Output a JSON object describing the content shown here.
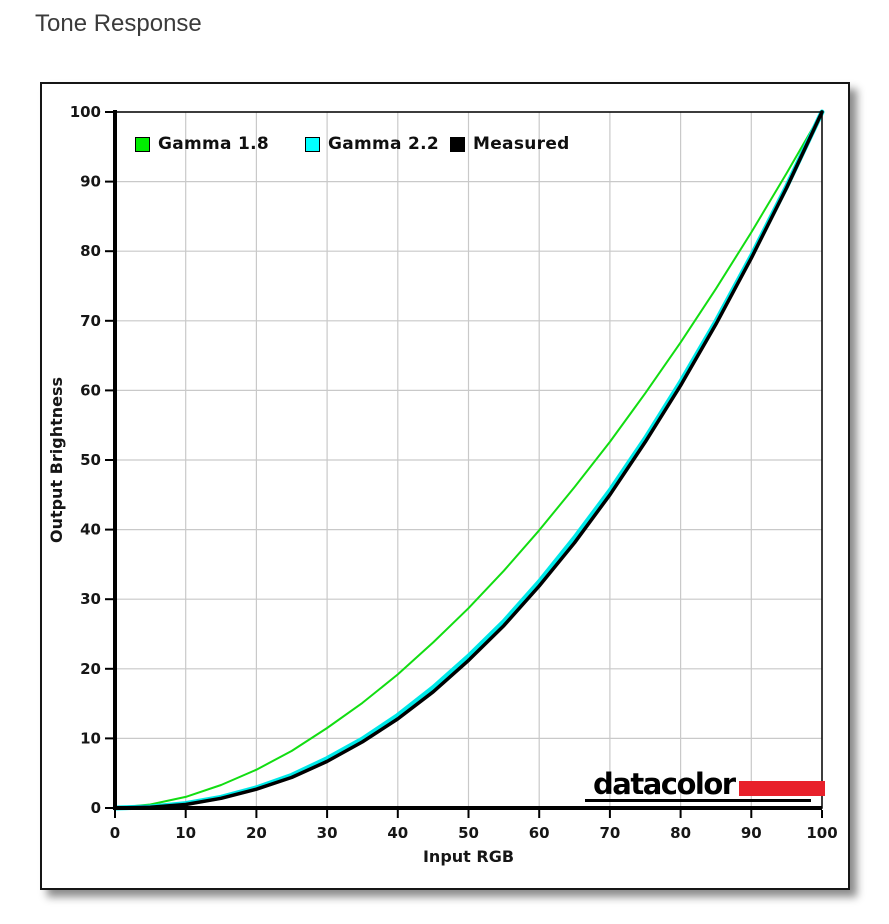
{
  "page": {
    "title": "Tone Response"
  },
  "logo": {
    "text": "datacolor",
    "bar_color": "#e8212b",
    "underline_color": "#000000"
  },
  "style_colors": {
    "grid": "#c9c9c9",
    "axis": "#000000",
    "tick_text": "#161616",
    "title_text": "#3b3b3b",
    "panel_border": "#161616",
    "background": "#ffffff"
  },
  "chart_data": {
    "type": "line",
    "title": "Tone Response",
    "xlabel": "Input RGB",
    "ylabel": "Output Brightness",
    "xlim": [
      0,
      100
    ],
    "ylim": [
      0,
      100
    ],
    "x_ticks": [
      0,
      10,
      20,
      30,
      40,
      50,
      60,
      70,
      80,
      90,
      100
    ],
    "y_ticks": [
      0,
      10,
      20,
      30,
      40,
      50,
      60,
      70,
      80,
      90,
      100
    ],
    "grid": true,
    "legend_position": "top-left-inside",
    "x": [
      0,
      5,
      10,
      15,
      20,
      25,
      30,
      35,
      40,
      45,
      50,
      55,
      60,
      65,
      70,
      75,
      80,
      85,
      90,
      95,
      100
    ],
    "series": [
      {
        "name": "Gamma 1.8",
        "color": "#12dd12",
        "legend_color": "#00ee00",
        "line_width": 2,
        "values": [
          0,
          0.5,
          1.6,
          3.3,
          5.5,
          8.2,
          11.5,
          15.1,
          19.2,
          23.8,
          28.7,
          34.1,
          39.9,
          46.1,
          52.6,
          59.6,
          66.9,
          74.6,
          82.7,
          91.2,
          100
        ]
      },
      {
        "name": "Gamma 2.2",
        "color": "#00e8e8",
        "legend_color": "#00ffff",
        "line_width": 5,
        "values": [
          0,
          0.14,
          0.63,
          1.54,
          2.9,
          4.7,
          7.1,
          9.9,
          13.3,
          17.3,
          21.8,
          26.8,
          32.5,
          38.8,
          45.6,
          53.1,
          61.2,
          69.9,
          79.3,
          89.3,
          100
        ]
      },
      {
        "name": "Measured",
        "color": "#000000",
        "legend_color": "#000000",
        "line_width": 3.5,
        "values": [
          0,
          0.1,
          0.5,
          1.4,
          2.7,
          4.4,
          6.7,
          9.5,
          12.8,
          16.7,
          21.2,
          26.2,
          31.9,
          38.1,
          45.0,
          52.6,
          60.7,
          69.5,
          79.0,
          89.1,
          100
        ]
      }
    ]
  }
}
